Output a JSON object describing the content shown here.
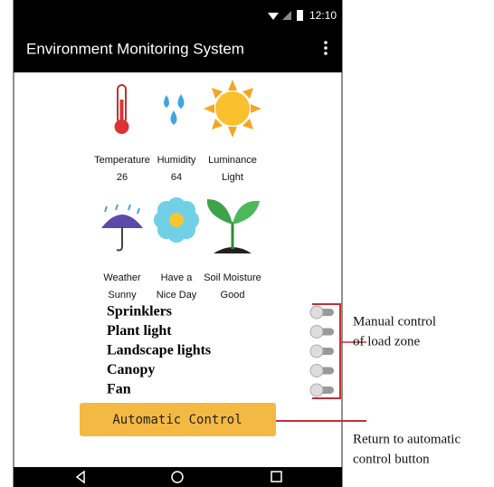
{
  "status_bar": {
    "time": "12:10"
  },
  "app_bar": {
    "title": "Environment Monitoring System"
  },
  "sensors": [
    {
      "label": "Temperature",
      "value": "26"
    },
    {
      "label": "Humidity",
      "value": "64"
    },
    {
      "label": "Luminance",
      "value": "Light"
    },
    {
      "label": "Weather",
      "value": "Sunny"
    },
    {
      "label": "Have a",
      "value": "Nice Day"
    },
    {
      "label": "Soil Moisture",
      "value": "Good"
    }
  ],
  "loads": [
    "Sprinklers",
    "Plant light",
    "Landscape lights",
    "Canopy",
    "Fan"
  ],
  "button": "Automatic Control",
  "annotations": {
    "manual": [
      "Manual control",
      "of load zone"
    ],
    "automatic": [
      "Return to automatic",
      "control button"
    ]
  }
}
